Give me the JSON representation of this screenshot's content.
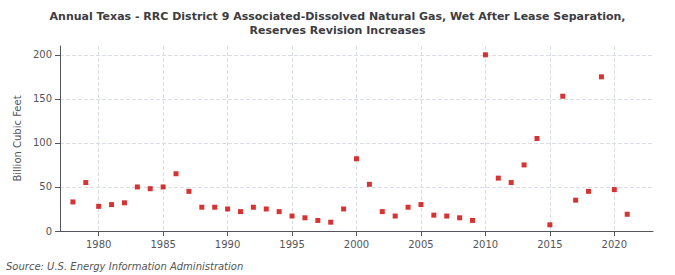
{
  "chart_data": {
    "type": "scatter",
    "title": "Annual Texas - RRC District 9 Associated-Dissolved Natural Gas, Wet After Lease Separation,\nReserves Revision Increases",
    "ylabel": "Billion Cubic Feet",
    "annotations": [
      "Source: U.S. Energy Information Administration"
    ],
    "color": "#cc0000",
    "marker": "square",
    "x": [
      1978,
      1979,
      1980,
      1981,
      1982,
      1983,
      1984,
      1985,
      1986,
      1987,
      1988,
      1989,
      1990,
      1991,
      1992,
      1993,
      1994,
      1995,
      1996,
      1997,
      1998,
      1999,
      2000,
      2001,
      2002,
      2003,
      2004,
      2005,
      2006,
      2007,
      2008,
      2009,
      2010,
      2011,
      2012,
      2013,
      2014,
      2015,
      2016,
      2017,
      2018,
      2019,
      2020,
      2021
    ],
    "values": [
      33,
      55,
      28,
      30,
      32,
      50,
      48,
      50,
      65,
      45,
      27,
      27,
      25,
      22,
      27,
      25,
      22,
      17,
      15,
      12,
      10,
      25,
      82,
      53,
      22,
      17,
      27,
      30,
      18,
      17,
      15,
      12,
      200,
      60,
      55,
      75,
      105,
      7,
      153,
      35,
      45,
      175,
      47,
      19
    ],
    "xlim": [
      1977,
      2023
    ],
    "xticks": [
      1980,
      1985,
      1990,
      1995,
      2000,
      2005,
      2010,
      2015,
      2020
    ],
    "ylim": [
      0,
      210
    ],
    "yticks": [
      0,
      50,
      100,
      150,
      200
    ],
    "grid": true
  }
}
